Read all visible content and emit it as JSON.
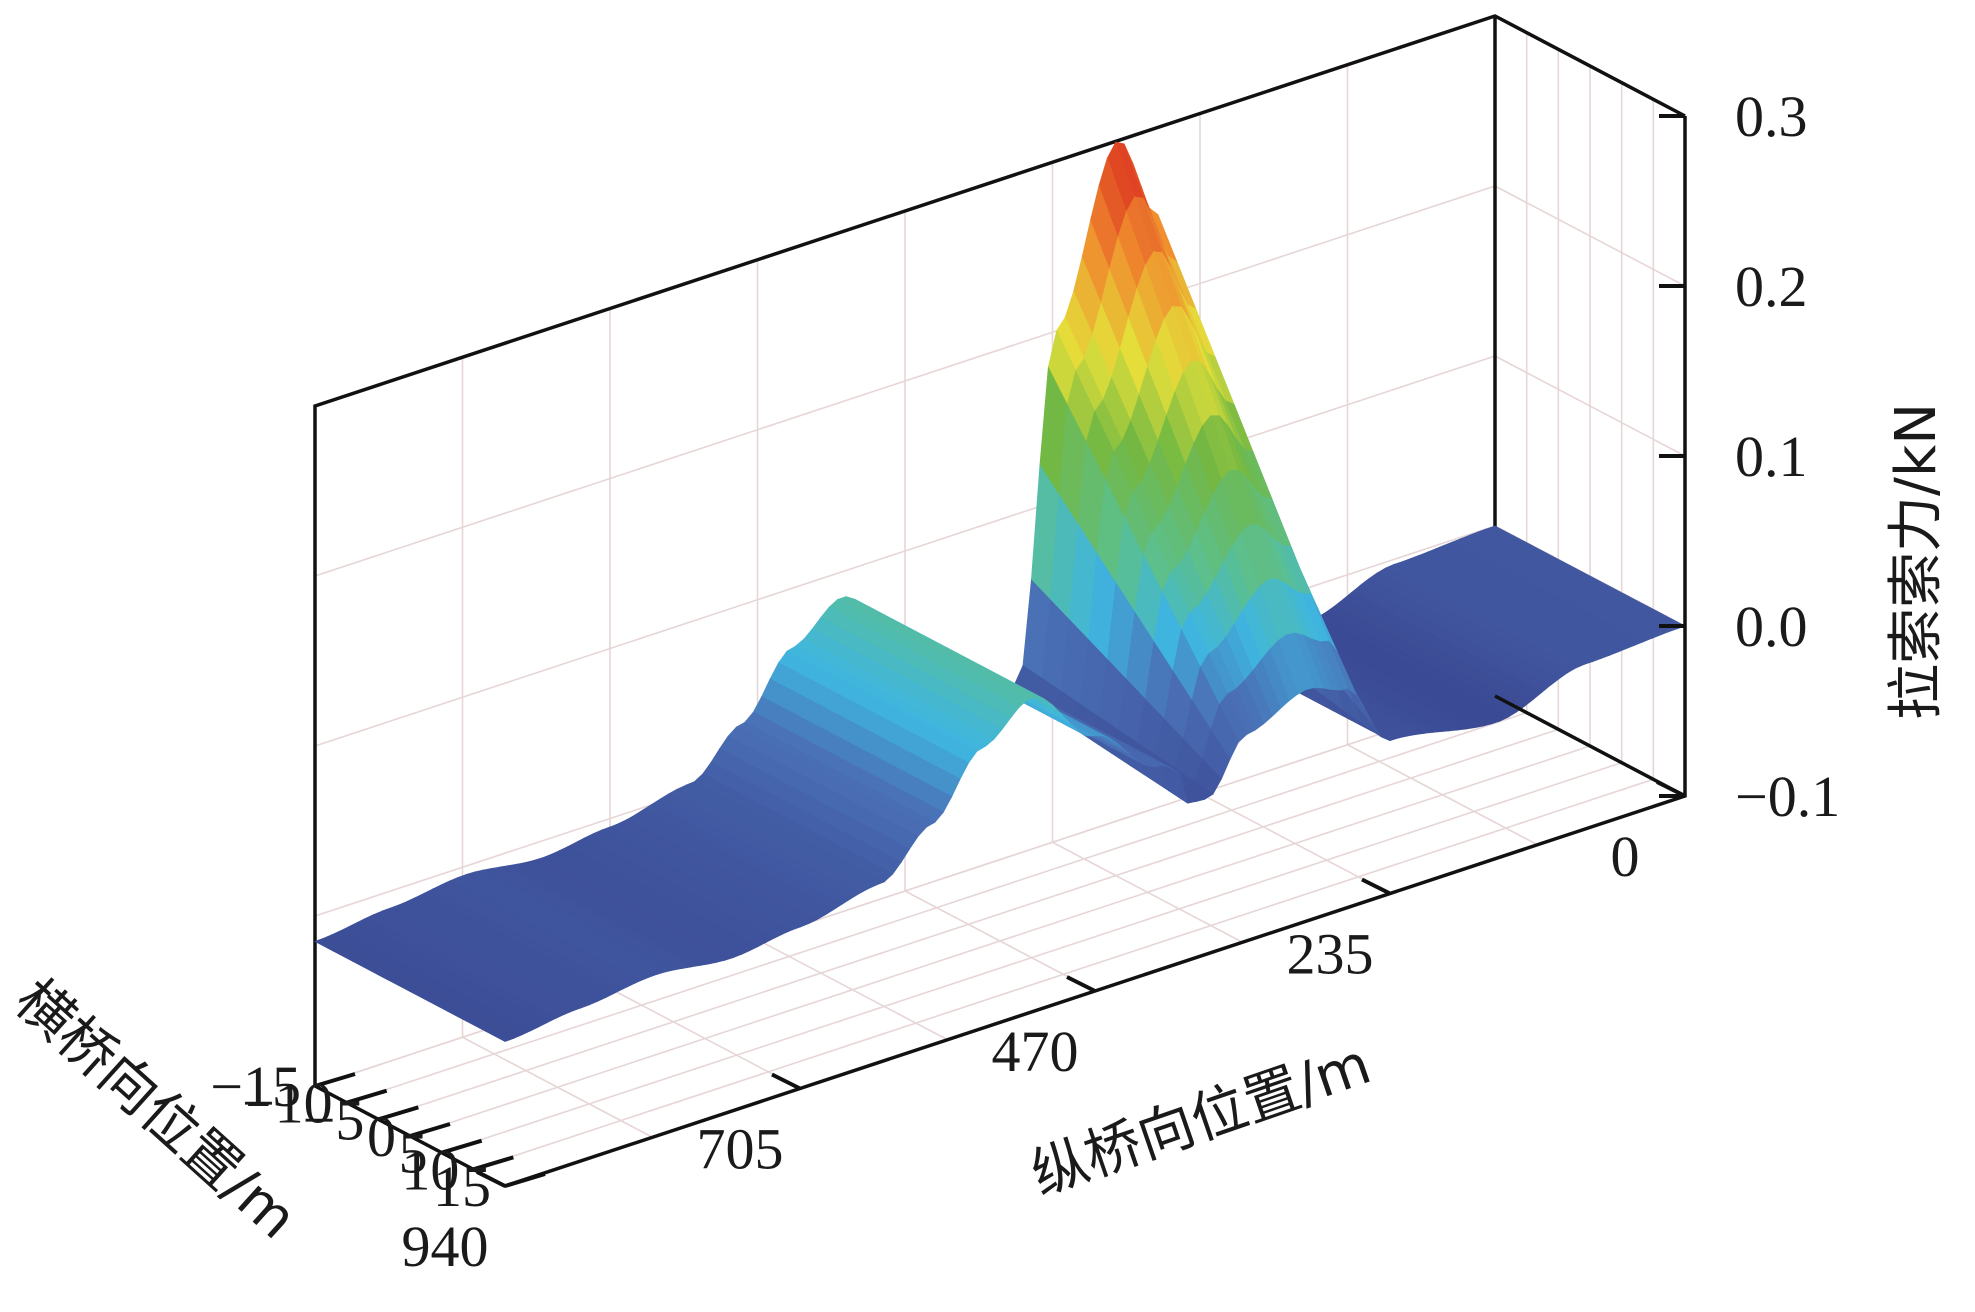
{
  "chart_data": {
    "type": "surface",
    "title": "",
    "x_axis": {
      "label": "纵桥向位置/m",
      "ticks": [
        940,
        705,
        470,
        235,
        0
      ],
      "tick_labels": [
        "940",
        "705",
        "470",
        "235",
        "0"
      ],
      "range": [
        0,
        940
      ]
    },
    "y_axis": {
      "label": "横桥向位置/m",
      "ticks": [
        -15,
        -10,
        -5,
        0,
        5,
        10,
        15
      ],
      "tick_labels": [
        "−15",
        "−10",
        "−5",
        "0",
        "5",
        "10",
        "15"
      ],
      "range": [
        -15,
        15
      ]
    },
    "z_axis": {
      "label": "拉索索力/kN",
      "ticks": [
        -0.1,
        0.0,
        0.1,
        0.2,
        0.3
      ],
      "tick_labels": [
        "−0.1",
        "0.0",
        "0.1",
        "0.2",
        "0.3"
      ],
      "range": [
        -0.1,
        0.3
      ]
    },
    "colormap": [
      "#3b4a94",
      "#4a6fb5",
      "#3fb6e0",
      "#5bbf8e",
      "#73b843",
      "#e4e03a",
      "#f08c2e",
      "#d92a20"
    ],
    "grid": true,
    "surface_profile": {
      "x": [
        0,
        80,
        150,
        235,
        270,
        300,
        350,
        380,
        420,
        470,
        520,
        560,
        600,
        640,
        705,
        760,
        820,
        880,
        940
      ],
      "z": [
        0.0,
        -0.003,
        -0.02,
        -0.01,
        0.25,
        0.3,
        0.2,
        0.0,
        0.02,
        0.05,
        0.085,
        0.065,
        0.03,
        0.005,
        -0.005,
        -0.01,
        -0.005,
        -0.01,
        -0.015
      ]
    }
  }
}
